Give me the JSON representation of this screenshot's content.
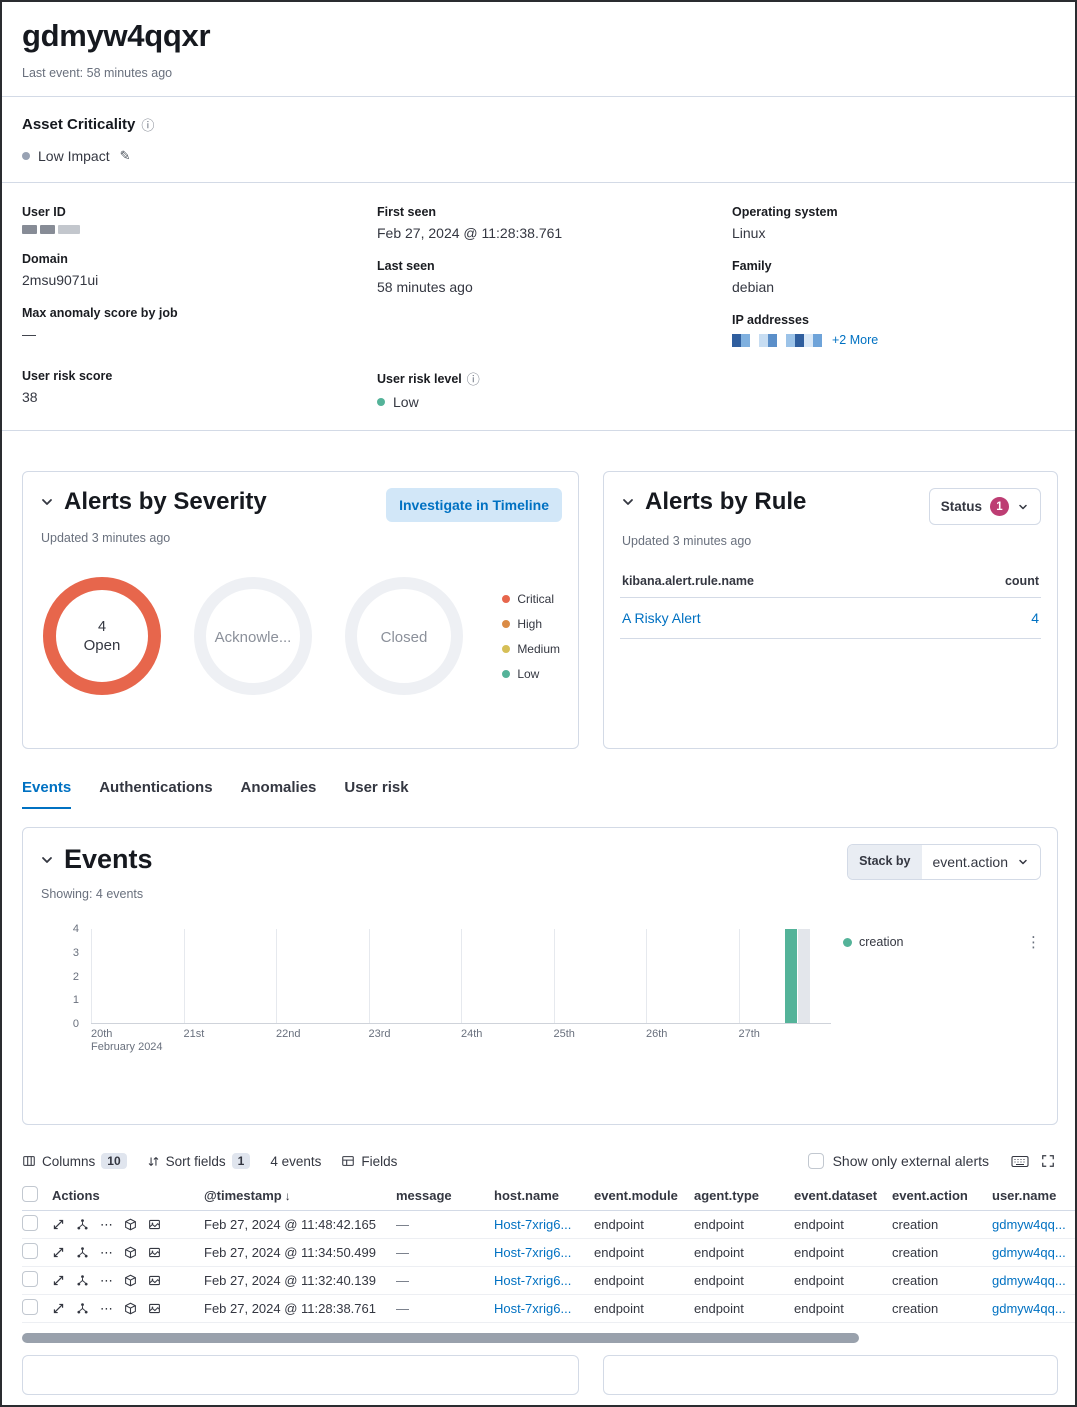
{
  "header": {
    "title": "gdmyw4qqxr",
    "last_event": "Last event: 58 minutes ago"
  },
  "asset_criticality": {
    "heading": "Asset Criticality",
    "value": "Low Impact",
    "dot_color": "#98a2b3"
  },
  "overview": {
    "fields": {
      "user_id_label": "User ID",
      "domain_label": "Domain",
      "domain_value": "2msu9071ui",
      "max_anomaly_label": "Max anomaly score by job",
      "max_anomaly_value": "—",
      "first_seen_label": "First seen",
      "first_seen_value": "Feb 27, 2024 @ 11:28:38.761",
      "last_seen_label": "Last seen",
      "last_seen_value": "58 minutes ago",
      "os_label": "Operating system",
      "os_value": "Linux",
      "family_label": "Family",
      "family_value": "debian",
      "ip_label": "IP addresses",
      "ip_more": "+2 More"
    },
    "risk": {
      "score_label": "User risk score",
      "score_value": "38",
      "level_label": "User risk level",
      "level_value": "Low",
      "level_color": "#54b399"
    }
  },
  "alerts_by_severity": {
    "title": "Alerts by Severity",
    "updated": "Updated 3 minutes ago",
    "investigate_button": "Investigate in Timeline",
    "donuts": [
      {
        "count": "4",
        "label": "Open"
      },
      {
        "label": "Acknowle..."
      },
      {
        "label": "Closed"
      }
    ],
    "legend": [
      {
        "label": "Critical",
        "color": "#e7664c"
      },
      {
        "label": "High",
        "color": "#da8b45"
      },
      {
        "label": "Medium",
        "color": "#d6bf57"
      },
      {
        "label": "Low",
        "color": "#54b399"
      }
    ],
    "open_ring_color": "#e7664c"
  },
  "alerts_by_rule": {
    "title": "Alerts by Rule",
    "updated": "Updated 3 minutes ago",
    "status_button": "Status",
    "status_badge": "1",
    "status_badge_color": "#bd3d73",
    "table": {
      "name_header": "kibana.alert.rule.name",
      "count_header": "count",
      "rows": [
        {
          "name": "A Risky Alert",
          "count": "4"
        }
      ]
    }
  },
  "tabs": [
    {
      "label": "Events",
      "active": true
    },
    {
      "label": "Authentications",
      "active": false
    },
    {
      "label": "Anomalies",
      "active": false
    },
    {
      "label": "User risk",
      "active": false
    }
  ],
  "events_section": {
    "title": "Events",
    "showing": "Showing: 4 events",
    "stack_by_label": "Stack by",
    "stack_by_value": "event.action"
  },
  "chart_data": {
    "type": "bar",
    "x": [
      "20th",
      "21st",
      "22nd",
      "23rd",
      "24th",
      "25th",
      "26th",
      "27th"
    ],
    "x_axis_subtitle": "February 2024",
    "yticks": [
      4,
      3,
      2,
      1,
      0
    ],
    "ylim": [
      0,
      4
    ],
    "series": [
      {
        "name": "creation",
        "color": "#54b399",
        "values": [
          0,
          0,
          0,
          0,
          0,
          0,
          0,
          4
        ]
      }
    ],
    "legend_position": "right",
    "grid": "vertical"
  },
  "table_toolbar": {
    "columns_label": "Columns",
    "columns_count": "10",
    "sort_label": "Sort fields",
    "sort_count": "1",
    "events_count": "4 events",
    "fields_label": "Fields",
    "external_alerts_label": "Show only external alerts"
  },
  "events_table": {
    "headers": [
      "Actions",
      "@timestamp",
      "message",
      "host.name",
      "event.module",
      "agent.type",
      "event.dataset",
      "event.action",
      "user.name"
    ],
    "rows": [
      {
        "timestamp": "Feb 27, 2024 @ 11:48:42.165",
        "message": "—",
        "host": "Host-7xrig6...",
        "module": "endpoint",
        "agent": "endpoint",
        "dataset": "endpoint",
        "action": "creation",
        "user": "gdmyw4qq..."
      },
      {
        "timestamp": "Feb 27, 2024 @ 11:34:50.499",
        "message": "—",
        "host": "Host-7xrig6...",
        "module": "endpoint",
        "agent": "endpoint",
        "dataset": "endpoint",
        "action": "creation",
        "user": "gdmyw4qq..."
      },
      {
        "timestamp": "Feb 27, 2024 @ 11:32:40.139",
        "message": "—",
        "host": "Host-7xrig6...",
        "module": "endpoint",
        "agent": "endpoint",
        "dataset": "endpoint",
        "action": "creation",
        "user": "gdmyw4qq..."
      },
      {
        "timestamp": "Feb 27, 2024 @ 11:28:38.761",
        "message": "—",
        "host": "Host-7xrig6...",
        "module": "endpoint",
        "agent": "endpoint",
        "dataset": "endpoint",
        "action": "creation",
        "user": "gdmyw4qq..."
      }
    ]
  },
  "icons": {
    "info": "ⓘ",
    "edit_pencil": "✎",
    "more_actions": "⋯",
    "vertical_menu": "⋮",
    "sort_descending": "↓"
  },
  "colors": {
    "accent_link": "#0071c2",
    "bar_green": "#54b399",
    "open_ring": "#e7664c",
    "status_badge": "#bd3d73"
  }
}
